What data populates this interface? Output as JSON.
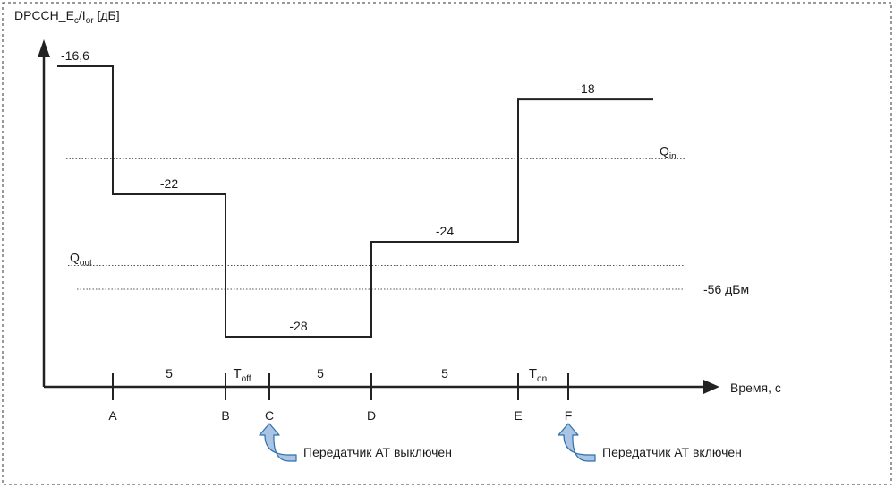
{
  "chart_data": {
    "type": "line",
    "title": "",
    "ylabel": {
      "main": "DPCCH_E",
      "sub_c": "c",
      "slash_i": "/I",
      "sub_or": "or",
      "unit": " [дБ]"
    },
    "xlabel": "Время, с",
    "x_markers": [
      "A",
      "B",
      "C",
      "D",
      "E",
      "F"
    ],
    "intervals": [
      {
        "from": "A",
        "to": "B",
        "label": "5",
        "label_sub": ""
      },
      {
        "from": "B",
        "to": "C",
        "label": "T",
        "label_sub": "off"
      },
      {
        "from": "C",
        "to": "D",
        "label": "5",
        "label_sub": ""
      },
      {
        "from": "D",
        "to": "E",
        "label": "5",
        "label_sub": ""
      },
      {
        "from": "E",
        "to": "F",
        "label": "T",
        "label_sub": "on"
      }
    ],
    "series": [
      {
        "segments": [
          {
            "from": "start",
            "to": "A",
            "value": -16.6,
            "label": "-16,6"
          },
          {
            "from": "A",
            "to": "B",
            "value": -22,
            "label": "-22"
          },
          {
            "from": "B",
            "to": "D",
            "value": -28,
            "label": "-28"
          },
          {
            "from": "D",
            "to": "E",
            "value": -24,
            "label": "-24"
          },
          {
            "from": "E",
            "to": "end",
            "value": -18,
            "label": "-18"
          }
        ]
      }
    ],
    "reference_lines": [
      {
        "name": "Q",
        "sub": "in",
        "value": -20.5
      },
      {
        "name": "Q",
        "sub": "out",
        "value": -25
      },
      {
        "name": "-56 дБм",
        "sub": "",
        "value": -26
      }
    ],
    "annotations": [
      {
        "at": "C",
        "text": "Передатчик АТ выключен"
      },
      {
        "at": "F",
        "text": "Передатчик АТ включен"
      }
    ],
    "colors": {
      "step_line": "#222222",
      "reference": "#555555",
      "arrow_fill": "#a9c4e4",
      "arrow_stroke": "#2f6fa8",
      "frame": "#333333"
    }
  }
}
